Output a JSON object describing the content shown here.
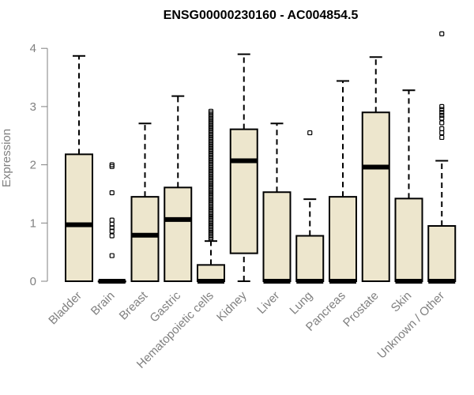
{
  "chart_data": {
    "type": "boxplot",
    "title": "ENSG00000230160 - AC004854.5",
    "ylabel": "Expression",
    "xlabel": "",
    "ylim": [
      0,
      4.3
    ],
    "yticks": [
      0,
      1,
      2,
      3,
      4
    ],
    "box_fill": "#ede6cd",
    "categories": [
      "Bladder",
      "Brain",
      "Breast",
      "Gastric",
      "Hematopoietic cells",
      "Kidney",
      "Liver",
      "Lung",
      "Pancreas",
      "Prostate",
      "Skin",
      "Unknown / Other"
    ],
    "boxes": [
      {
        "q1": 0,
        "median": 0.97,
        "q3": 2.18,
        "whisker_low": 0,
        "whisker_high": 3.87,
        "outliers": []
      },
      {
        "q1": 0,
        "median": 0,
        "q3": 0,
        "whisker_low": 0,
        "whisker_high": 0,
        "outliers": [
          2.0,
          1.97,
          1.52,
          1.05,
          0.98,
          0.92,
          0.86,
          0.78,
          0.44
        ]
      },
      {
        "q1": 0,
        "median": 0.79,
        "q3": 1.45,
        "whisker_low": 0,
        "whisker_high": 2.71,
        "outliers": []
      },
      {
        "q1": 0,
        "median": 1.06,
        "q3": 1.61,
        "whisker_low": 0,
        "whisker_high": 3.18,
        "outliers": []
      },
      {
        "q1": 0,
        "median": 0,
        "q3": 0.28,
        "whisker_low": 0,
        "whisker_high": 0.69,
        "outliers_dense": [
          0.72,
          2.92
        ]
      },
      {
        "q1": 0.48,
        "median": 2.07,
        "q3": 2.61,
        "whisker_low": 0,
        "whisker_high": 3.9,
        "outliers": []
      },
      {
        "q1": 0,
        "median": 0,
        "q3": 1.53,
        "whisker_low": 0,
        "whisker_high": 2.71,
        "outliers": []
      },
      {
        "q1": 0,
        "median": 0,
        "q3": 0.78,
        "whisker_low": 0,
        "whisker_high": 1.41,
        "outliers": [
          2.55
        ]
      },
      {
        "q1": 0,
        "median": 0,
        "q3": 1.45,
        "whisker_low": 0,
        "whisker_high": 3.44,
        "outliers": []
      },
      {
        "q1": 0,
        "median": 1.96,
        "q3": 2.9,
        "whisker_low": 0,
        "whisker_high": 3.85,
        "outliers": []
      },
      {
        "q1": 0,
        "median": 0,
        "q3": 1.42,
        "whisker_low": 0,
        "whisker_high": 3.28,
        "outliers": []
      },
      {
        "q1": 0,
        "median": 0,
        "q3": 0.95,
        "whisker_low": 0,
        "whisker_high": 2.07,
        "outliers": [
          4.25,
          3.0,
          2.95,
          2.9,
          2.85,
          2.8,
          2.72,
          2.62,
          2.55,
          2.47
        ]
      }
    ]
  }
}
